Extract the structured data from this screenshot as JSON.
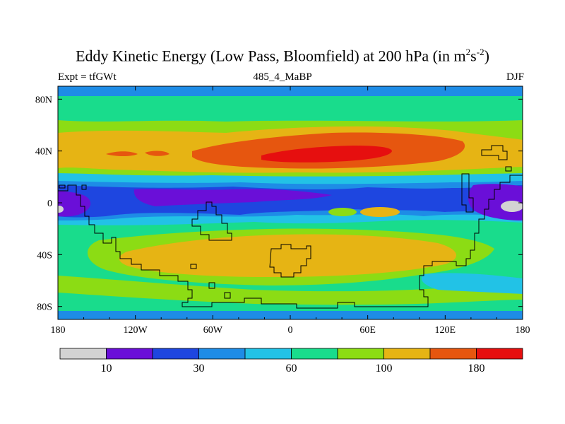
{
  "header": {
    "title_main": "Eddy Kinetic Energy (Low Pass, Bloomfield) at 200 hPa (in m",
    "title_sup1": "2",
    "title_mid": "s",
    "title_sup2": "-2",
    "title_end": ")",
    "left_label": "Expt = tfGWt",
    "center_label": "485_4_MaBP",
    "right_label": "DJF"
  },
  "chart_data": {
    "type": "heatmap",
    "title": "Eddy Kinetic Energy (Low Pass, Bloomfield) at 200 hPa (in m^2 s^-2)",
    "x_ticks": [
      "180",
      "120W",
      "60W",
      "0",
      "60E",
      "120E",
      "180"
    ],
    "x_tick_values": [
      -180,
      -120,
      -60,
      0,
      60,
      120,
      180
    ],
    "y_ticks": [
      "80N",
      "40N",
      "0",
      "40S",
      "80S"
    ],
    "y_tick_values": [
      80,
      40,
      0,
      -40,
      -80
    ],
    "xlim": [
      -180,
      180
    ],
    "ylim": [
      -90,
      90
    ],
    "colorbar": {
      "colors": [
        "#d3d3d3",
        "#6a0fd8",
        "#1e46e0",
        "#1e8ce6",
        "#22c2e6",
        "#19dc8c",
        "#8cdc14",
        "#e6b414",
        "#e6560f",
        "#e60f0f"
      ],
      "labels": [
        "10",
        "30",
        "60",
        "100",
        "180"
      ],
      "label_after_box": [
        1,
        3,
        5,
        7,
        9
      ]
    }
  }
}
